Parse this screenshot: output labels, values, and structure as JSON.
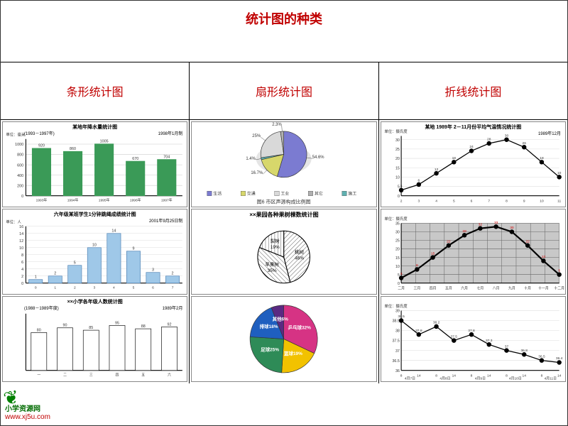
{
  "page_title": "统计图的种类",
  "columns": [
    {
      "id": "bar",
      "heading": "条形统计图"
    },
    {
      "id": "pie",
      "heading": "扇形统计图"
    },
    {
      "id": "line",
      "heading": "折线统计图"
    }
  ],
  "bar_chart_1": {
    "type": "bar",
    "title": "某地年降水量统计图",
    "subtitle_left": "(1993－1997年)",
    "subtitle_right": "1998年1月制",
    "unit_label": "单位：毫米",
    "categories": [
      "1993年",
      "1994年",
      "1995年",
      "1996年",
      "1997年"
    ],
    "values": [
      920,
      860,
      1005,
      670,
      704
    ],
    "bar_color": "#3a9a57",
    "grid_color": "#cccccc",
    "background_color": "#ffffff",
    "yticks": [
      0,
      200,
      400,
      600,
      800,
      1000
    ],
    "ylim": [
      0,
      1100
    ],
    "bar_width": 0.6,
    "label_fontsize": 6,
    "title_fontsize": 7
  },
  "bar_chart_2": {
    "type": "bar",
    "title": "六年级某班学生1分钟跳绳成绩统计图",
    "subtitle_right": "2001年9月25日制",
    "unit_label": "单位：人",
    "categories": [
      "0",
      "1",
      "2",
      "3",
      "4",
      "5",
      "6",
      "7"
    ],
    "values": [
      1,
      2,
      5,
      10,
      14,
      9,
      3,
      2
    ],
    "bar_color": "#9fc8e8",
    "border_color": "#4a7db0",
    "background_color": "#ffffff",
    "yticks": [
      0,
      2,
      4,
      6,
      8,
      10,
      12,
      14,
      16
    ],
    "ylim": [
      0,
      16
    ],
    "bar_width": 0.7,
    "title_fontsize": 7
  },
  "bar_chart_3": {
    "type": "bar",
    "title": "××小学各年级人数统计图",
    "subtitle_left": "(1988－1989年度)",
    "subtitle_right": "1989年2月",
    "categories": [
      "一",
      "二",
      "三",
      "四",
      "五",
      "六"
    ],
    "values": [
      80,
      90,
      85,
      95,
      88,
      92
    ],
    "bar_color": "#ffffff",
    "border_color": "#000000",
    "background_color": "#ffffff",
    "ylim": [
      0,
      120
    ],
    "bar_width": 0.6,
    "title_fontsize": 7
  },
  "pie_chart_1": {
    "type": "pie",
    "title": "图6 市区声源构成比例图",
    "slices": [
      {
        "label": "生活",
        "value": 54.6,
        "color": "#7b7bd1",
        "pattern": "solid"
      },
      {
        "label": "交通",
        "value": 16.7,
        "color": "#d7d76b",
        "pattern": "solid"
      },
      {
        "label": "施工",
        "value": 1.4,
        "color": "#5fb0b0",
        "pattern": "solid"
      },
      {
        "label": "工业",
        "value": 25.0,
        "color": "#d9d9d9",
        "pattern": "solid"
      },
      {
        "label": "其它",
        "value": 2.3,
        "color": "#b0b0b0",
        "pattern": "solid"
      }
    ],
    "legend_labels": [
      "生活",
      "交通",
      "工业",
      "其它",
      "施工"
    ],
    "callouts": [
      "25.0%",
      "2.3%",
      "16.7%",
      "1.4%",
      "54.6%"
    ],
    "background_color": "#ffffff",
    "stroke_color": "#333333",
    "title_fontsize": 7
  },
  "pie_chart_2": {
    "type": "pie",
    "title": "××果园各种果树棵数统计图",
    "slices": [
      {
        "label": "桃树",
        "value": 46,
        "color": "#ffffff",
        "pattern": "hatch-diag"
      },
      {
        "label": "苹果树",
        "value": 35,
        "color": "#ffffff",
        "pattern": "hatch-grid"
      },
      {
        "label": "梨树",
        "value": 19,
        "color": "#ffffff",
        "pattern": "dots"
      }
    ],
    "label_format": [
      "桃树 46%",
      "苹果树 35%",
      "梨树 19%"
    ],
    "background_color": "#ffffff",
    "stroke_color": "#000000",
    "title_fontsize": 8
  },
  "pie_chart_3": {
    "type": "pie",
    "slices": [
      {
        "label": "乒乓球",
        "value": 32,
        "color": "#d63384"
      },
      {
        "label": "篮球",
        "value": 19,
        "color": "#f2c200"
      },
      {
        "label": "足球",
        "value": 25,
        "color": "#2e8b57"
      },
      {
        "label": "排球",
        "value": 18,
        "color": "#1f5fbf"
      },
      {
        "label": "其他",
        "value": 6,
        "color": "#5a2a82"
      }
    ],
    "slice_labels": [
      "乒乓球32%",
      "篮球19%",
      "足球25%",
      "排球18%",
      "其他6%"
    ],
    "label_color": "#ffffff",
    "background_color": "#ffffff",
    "stroke_color": "#333333"
  },
  "line_chart_1": {
    "type": "line",
    "title": "某地 1989年 2－11月份平均气温情况统计图",
    "subtitle_right": "1989年12月",
    "unit_label": "单位：摄氏度",
    "x": [
      "2",
      "3",
      "4",
      "5",
      "6",
      "7",
      "8",
      "9",
      "10",
      "11"
    ],
    "y": [
      3,
      6,
      12,
      18,
      24,
      28,
      30,
      26,
      18,
      10
    ],
    "line_color": "#000000",
    "marker": "circle",
    "marker_size": 3,
    "background_color": "#ffffff",
    "grid_color": "#dddddd",
    "ylim": [
      0,
      32
    ],
    "yticks": [
      0,
      5,
      10,
      15,
      20,
      25,
      30
    ],
    "title_fontsize": 7
  },
  "line_chart_2": {
    "type": "line",
    "unit_label": "单位：摄氏度",
    "x": [
      "二月",
      "三月",
      "四月",
      "五月",
      "六月",
      "七月",
      "八月",
      "九月",
      "十月",
      "十一月",
      "十二月"
    ],
    "y": [
      3,
      8,
      15,
      22,
      28,
      32,
      33,
      30,
      22,
      13,
      5
    ],
    "line_color": "#000000",
    "line_width": 2,
    "marker": "circle",
    "marker_size": 3,
    "background_color": "#c8c8c8",
    "grid_color": "#666666",
    "grid_dense": true,
    "ylim": [
      0,
      35
    ],
    "yticks": [
      0,
      5,
      10,
      15,
      20,
      25,
      30,
      35
    ],
    "value_labels_color": "#d00000"
  },
  "line_chart_3": {
    "type": "line",
    "unit_label": "单位：摄氏度",
    "x": [
      "4月7日",
      "4月8日",
      "4月9日",
      "4月10日",
      "4月11日"
    ],
    "x_sub": [
      "8",
      "14",
      "8",
      "14",
      "8",
      "14",
      "8",
      "14",
      "8",
      "14"
    ],
    "y": [
      38.5,
      37.8,
      38.2,
      37.5,
      37.8,
      37.3,
      37.0,
      36.8,
      36.5,
      36.4
    ],
    "line_color": "#000000",
    "marker": "circle",
    "marker_size": 3,
    "background_color": "#ffffff",
    "grid_color": "#dddddd",
    "ylim": [
      36,
      39
    ],
    "yticks": [
      36,
      36.5,
      37,
      37.5,
      38,
      38.5,
      39
    ]
  },
  "watermark": {
    "icon": "leaf-icon",
    "text_cn": "小学资源网",
    "url": "www.xj5u.com",
    "cn_color": "#006b00",
    "url_color": "#c00000"
  }
}
